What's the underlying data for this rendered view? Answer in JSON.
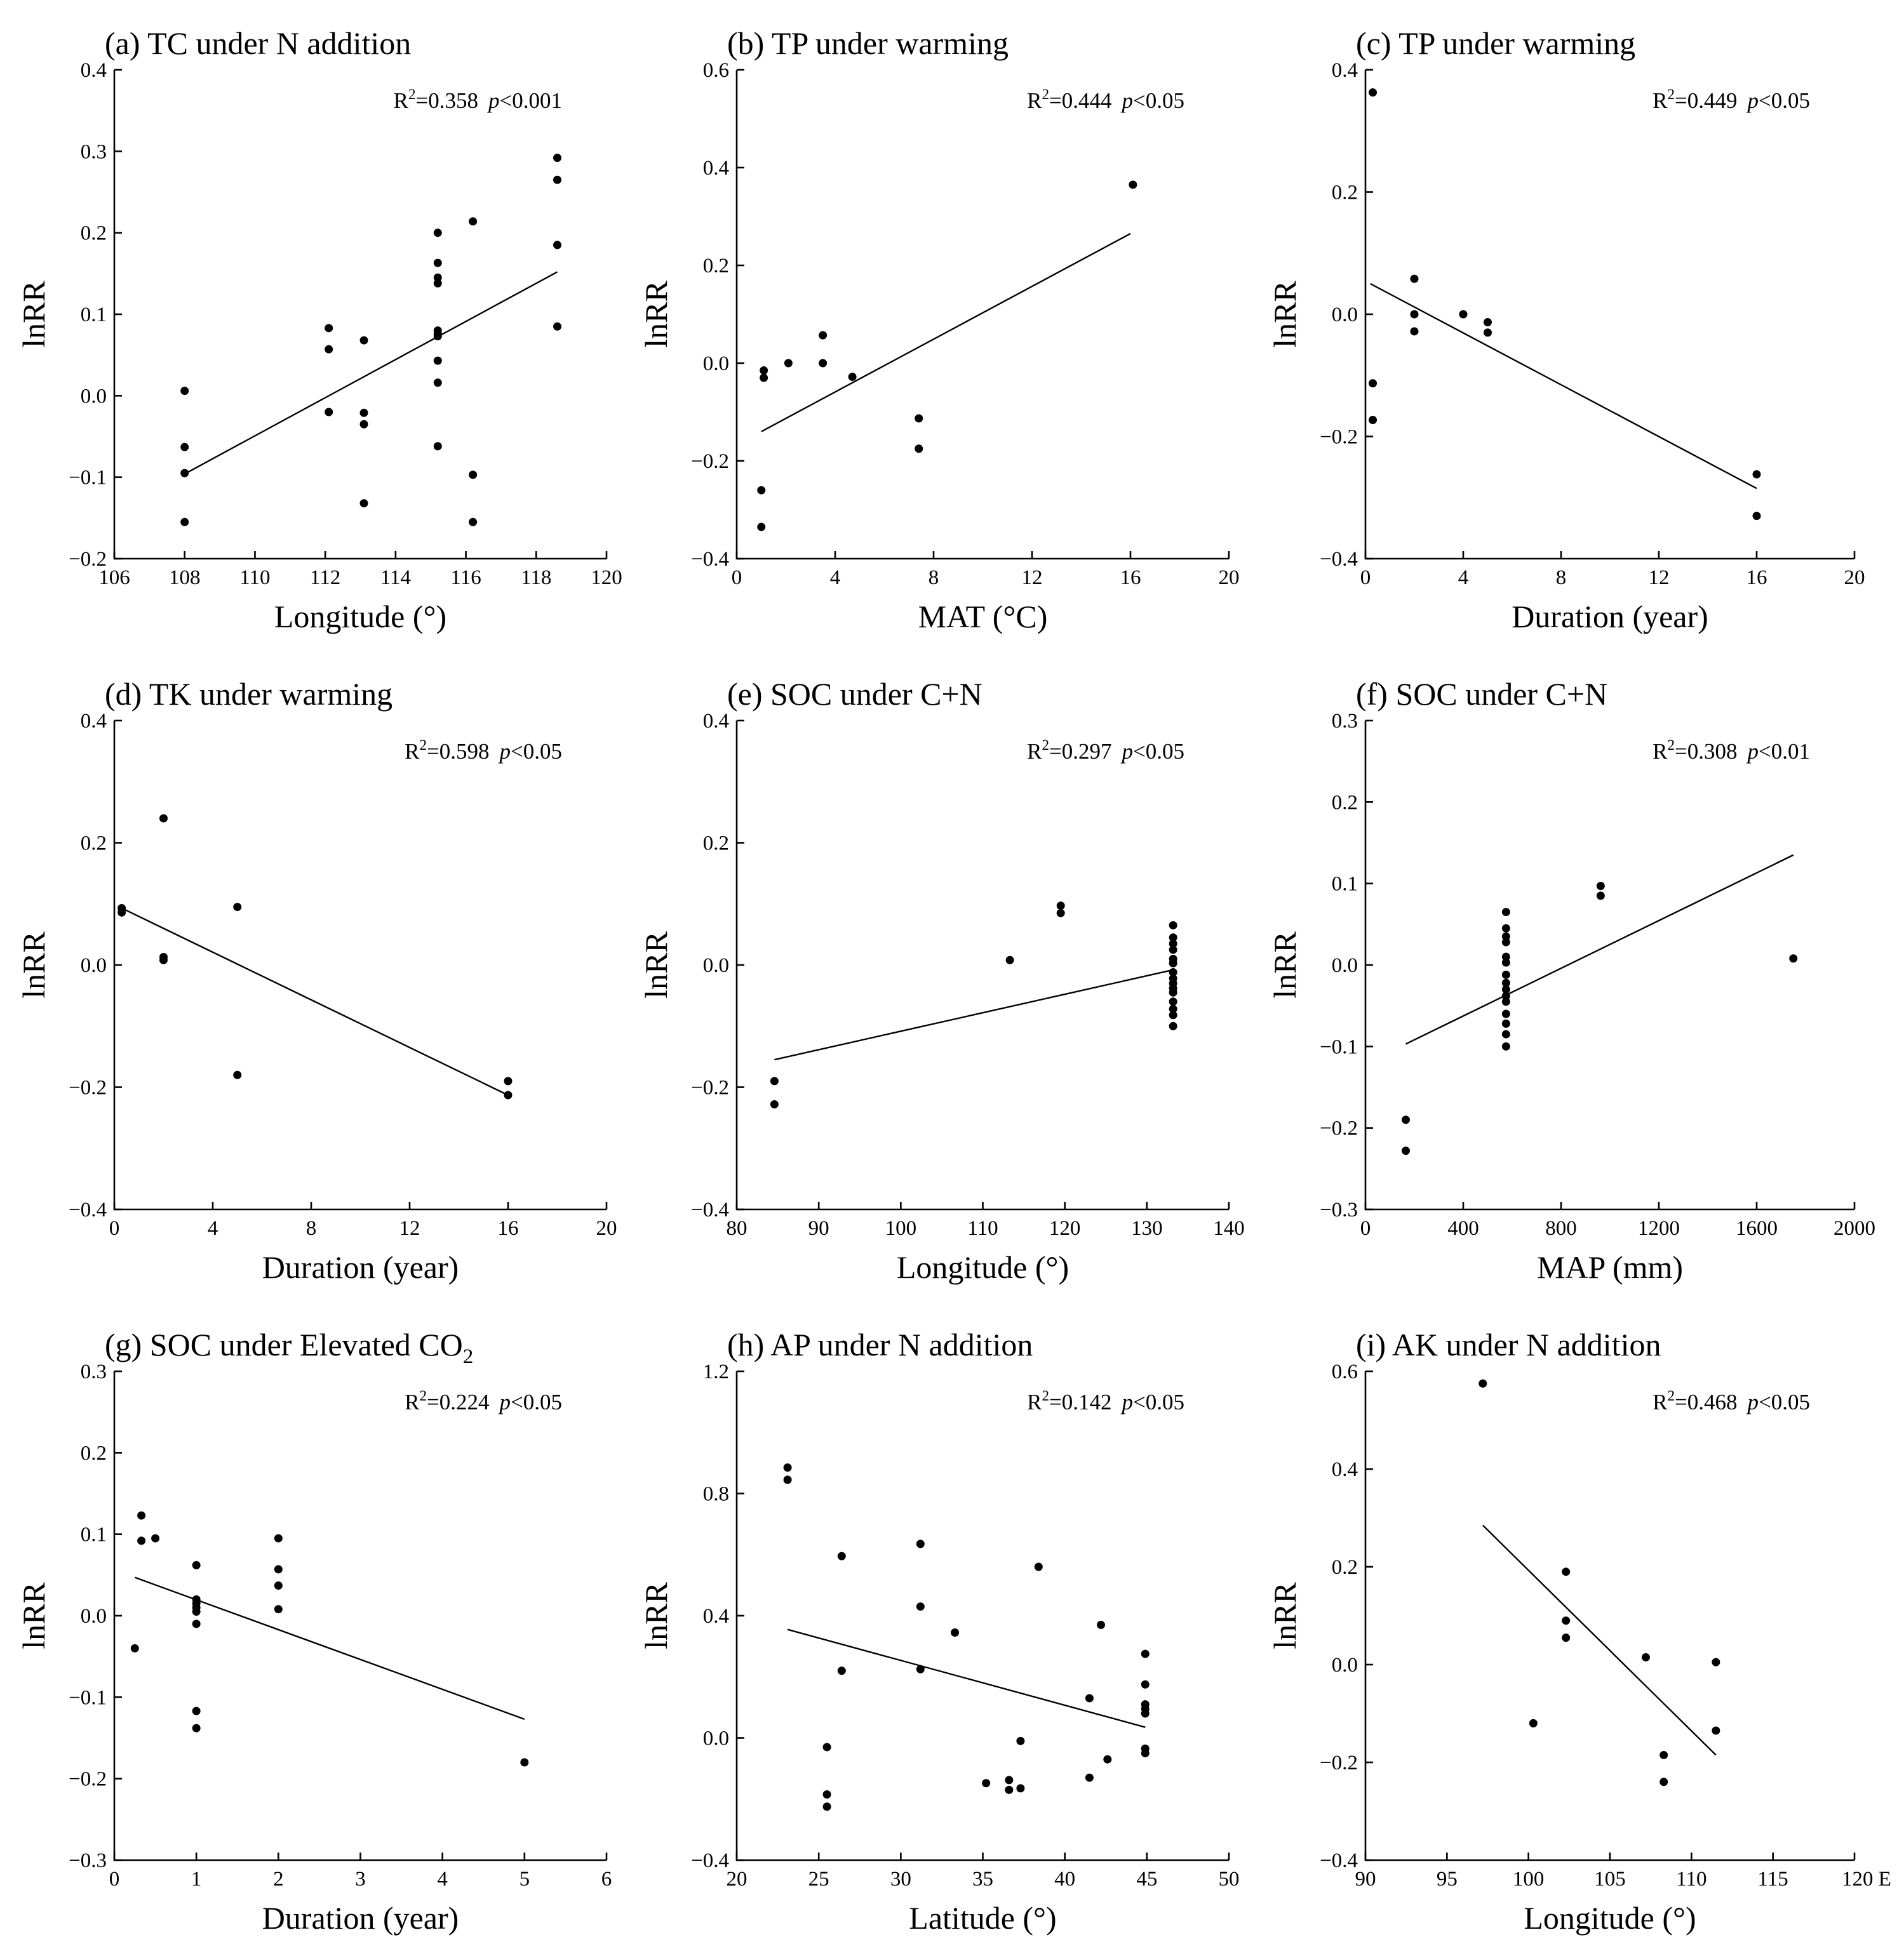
{
  "chart_data": [
    {
      "type": "scatter",
      "title": "(a) TC under N addition",
      "xlabel": "Longitude (°)",
      "ylabel": "lnRR",
      "xlim": [
        106,
        120
      ],
      "ylim": [
        -0.2,
        0.4
      ],
      "xticks": [
        106,
        108,
        110,
        112,
        114,
        116,
        118,
        120
      ],
      "yticks": [
        -0.2,
        -0.1,
        0.0,
        0.1,
        0.2,
        0.3,
        0.4
      ],
      "xdec": 0,
      "ydec": 1,
      "stat_r2": "0.358",
      "stat_p": "<0.001",
      "points": [
        [
          108,
          0.006
        ],
        [
          108,
          -0.063
        ],
        [
          108,
          -0.095
        ],
        [
          108,
          -0.155
        ],
        [
          112.1,
          0.083
        ],
        [
          112.1,
          0.057
        ],
        [
          112.1,
          -0.02
        ],
        [
          113.1,
          0.068
        ],
        [
          113.1,
          -0.021
        ],
        [
          113.1,
          -0.035
        ],
        [
          113.1,
          -0.132
        ],
        [
          115.2,
          0.2
        ],
        [
          115.2,
          0.163
        ],
        [
          115.2,
          0.145
        ],
        [
          115.2,
          0.138
        ],
        [
          115.2,
          0.08
        ],
        [
          115.2,
          0.076
        ],
        [
          115.2,
          0.073
        ],
        [
          115.2,
          0.043
        ],
        [
          115.2,
          0.016
        ],
        [
          115.2,
          -0.062
        ],
        [
          116.2,
          0.214
        ],
        [
          116.2,
          -0.097
        ],
        [
          116.2,
          -0.155
        ],
        [
          118.6,
          0.292
        ],
        [
          118.6,
          0.265
        ],
        [
          118.6,
          0.185
        ],
        [
          118.6,
          0.085
        ]
      ],
      "fit": [
        [
          108,
          -0.096
        ],
        [
          118.6,
          0.152
        ]
      ]
    },
    {
      "type": "scatter",
      "title": "(b) TP under warming",
      "xlabel": "MAT (°C)",
      "ylabel": "lnRR",
      "xlim": [
        0,
        20
      ],
      "ylim": [
        -0.4,
        0.6
      ],
      "xticks": [
        0,
        4,
        8,
        12,
        16,
        20
      ],
      "yticks": [
        -0.4,
        -0.2,
        0.0,
        0.2,
        0.4,
        0.6
      ],
      "xdec": 0,
      "ydec": 1,
      "stat_r2": "0.444",
      "stat_p": "<0.05",
      "points": [
        [
          1.1,
          -0.015
        ],
        [
          1.1,
          -0.03
        ],
        [
          1.0,
          -0.26
        ],
        [
          1.0,
          -0.335
        ],
        [
          2.1,
          0.0
        ],
        [
          3.5,
          0.057
        ],
        [
          3.5,
          0.0
        ],
        [
          4.7,
          -0.028
        ],
        [
          7.4,
          -0.113
        ],
        [
          7.4,
          -0.175
        ],
        [
          16.1,
          0.365
        ]
      ],
      "fit": [
        [
          1.0,
          -0.14
        ],
        [
          16.0,
          0.265
        ]
      ]
    },
    {
      "type": "scatter",
      "title": "(c) TP under warming",
      "xlabel": "Duration (year)",
      "ylabel": "lnRR",
      "xlim": [
        0,
        20
      ],
      "ylim": [
        -0.4,
        0.4
      ],
      "xticks": [
        0,
        4,
        8,
        12,
        16,
        20
      ],
      "yticks": [
        -0.4,
        -0.2,
        0.0,
        0.2,
        0.4
      ],
      "xdec": 0,
      "ydec": 1,
      "stat_r2": "0.449",
      "stat_p": "<0.05",
      "points": [
        [
          0.3,
          0.363
        ],
        [
          0.3,
          -0.113
        ],
        [
          0.3,
          -0.173
        ],
        [
          2,
          0.058
        ],
        [
          2,
          0.0
        ],
        [
          2,
          -0.028
        ],
        [
          4,
          0.0
        ],
        [
          5,
          -0.013
        ],
        [
          5,
          -0.03
        ],
        [
          16,
          -0.262
        ],
        [
          16,
          -0.33
        ]
      ],
      "fit": [
        [
          0.2,
          0.05
        ],
        [
          16,
          -0.285
        ]
      ]
    },
    {
      "type": "scatter",
      "title": "(d) TK under warming",
      "xlabel": "Duration (year)",
      "ylabel": "lnRR",
      "xlim": [
        0,
        20
      ],
      "ylim": [
        -0.4,
        0.4
      ],
      "xticks": [
        0,
        4,
        8,
        12,
        16,
        20
      ],
      "yticks": [
        -0.4,
        -0.2,
        0.0,
        0.2,
        0.4
      ],
      "xdec": 0,
      "ydec": 1,
      "stat_r2": "0.598",
      "stat_p": "<0.05",
      "points": [
        [
          0.3,
          0.093
        ],
        [
          0.3,
          0.086
        ],
        [
          2,
          0.24
        ],
        [
          2,
          0.013
        ],
        [
          2,
          0.008
        ],
        [
          5,
          0.095
        ],
        [
          5,
          -0.18
        ],
        [
          16,
          -0.19
        ],
        [
          16,
          -0.213
        ]
      ],
      "fit": [
        [
          0.2,
          0.095
        ],
        [
          16,
          -0.213
        ]
      ]
    },
    {
      "type": "scatter",
      "title": "(e) SOC under C+N",
      "xlabel": "Longitude (°)",
      "ylabel": "lnRR",
      "xlim": [
        80,
        140
      ],
      "ylim": [
        -0.4,
        0.4
      ],
      "xticks": [
        80,
        90,
        100,
        110,
        120,
        130,
        140
      ],
      "yticks": [
        -0.4,
        -0.2,
        0.0,
        0.2,
        0.4
      ],
      "xdec": 0,
      "ydec": 1,
      "stat_r2": "0.297",
      "stat_p": "<0.05",
      "points": [
        [
          84.6,
          -0.19
        ],
        [
          84.6,
          -0.228
        ],
        [
          113.3,
          0.008
        ],
        [
          119.5,
          0.097
        ],
        [
          119.5,
          0.085
        ],
        [
          133.2,
          0.065
        ],
        [
          133.2,
          0.045
        ],
        [
          133.2,
          0.035
        ],
        [
          133.2,
          0.025
        ],
        [
          133.2,
          0.01
        ],
        [
          133.2,
          0.003
        ],
        [
          133.2,
          -0.012
        ],
        [
          133.2,
          -0.022
        ],
        [
          133.2,
          -0.03
        ],
        [
          133.2,
          -0.038
        ],
        [
          133.2,
          -0.045
        ],
        [
          133.2,
          -0.06
        ],
        [
          133.2,
          -0.072
        ],
        [
          133.2,
          -0.082
        ],
        [
          133.2,
          -0.1
        ]
      ],
      "fit": [
        [
          84.6,
          -0.155
        ],
        [
          133.2,
          -0.008
        ]
      ]
    },
    {
      "type": "scatter",
      "title": "(f) SOC under C+N",
      "xlabel": "MAP (mm)",
      "ylabel": "lnRR",
      "xlim": [
        0,
        2000
      ],
      "ylim": [
        -0.3,
        0.3
      ],
      "xticks": [
        0,
        400,
        800,
        1200,
        1600,
        2000
      ],
      "yticks": [
        -0.3,
        -0.2,
        -0.1,
        0.0,
        0.1,
        0.2,
        0.3
      ],
      "xdec": 0,
      "ydec": 1,
      "stat_r2": "0.308",
      "stat_p": "<0.01",
      "points": [
        [
          165,
          -0.19
        ],
        [
          165,
          -0.228
        ],
        [
          575,
          0.065
        ],
        [
          575,
          0.045
        ],
        [
          575,
          0.035
        ],
        [
          575,
          0.028
        ],
        [
          575,
          0.01
        ],
        [
          575,
          0.003
        ],
        [
          575,
          -0.012
        ],
        [
          575,
          -0.022
        ],
        [
          575,
          -0.03
        ],
        [
          575,
          -0.038
        ],
        [
          575,
          -0.045
        ],
        [
          575,
          -0.06
        ],
        [
          575,
          -0.072
        ],
        [
          575,
          -0.085
        ],
        [
          575,
          -0.1
        ],
        [
          962,
          0.097
        ],
        [
          962,
          0.085
        ],
        [
          1750,
          0.008
        ]
      ],
      "fit": [
        [
          165,
          -0.097
        ],
        [
          1750,
          0.135
        ]
      ]
    },
    {
      "type": "scatter",
      "title": "(g) SOC under Elevated CO",
      "title_sub": "2",
      "xlabel": "Duration (year)",
      "ylabel": "lnRR",
      "xlim": [
        0,
        6
      ],
      "ylim": [
        -0.3,
        0.3
      ],
      "xticks": [
        0,
        1,
        2,
        3,
        4,
        5,
        6
      ],
      "yticks": [
        -0.3,
        -0.2,
        -0.1,
        0.0,
        0.1,
        0.2,
        0.3
      ],
      "xdec": 0,
      "ydec": 1,
      "stat_r2": "0.224",
      "stat_p": "<0.05",
      "points": [
        [
          0.25,
          -0.04
        ],
        [
          0.33,
          0.123
        ],
        [
          0.33,
          0.092
        ],
        [
          0.5,
          0.095
        ],
        [
          1,
          0.062
        ],
        [
          1,
          0.02
        ],
        [
          1,
          0.015
        ],
        [
          1,
          0.01
        ],
        [
          1,
          0.005
        ],
        [
          1,
          -0.01
        ],
        [
          1,
          -0.117
        ],
        [
          1,
          -0.138
        ],
        [
          2,
          0.095
        ],
        [
          2,
          0.057
        ],
        [
          2,
          0.037
        ],
        [
          2,
          0.008
        ],
        [
          5,
          -0.18
        ]
      ],
      "fit": [
        [
          0.25,
          0.047
        ],
        [
          5,
          -0.127
        ]
      ]
    },
    {
      "type": "scatter",
      "title": "(h) AP under N addition",
      "xlabel": "Latitude (°)",
      "ylabel": "lnRR",
      "xlim": [
        20,
        50
      ],
      "ylim": [
        -0.4,
        1.2
      ],
      "xticks": [
        20,
        25,
        30,
        35,
        40,
        45,
        50
      ],
      "yticks": [
        -0.4,
        0.0,
        0.4,
        0.8,
        1.2
      ],
      "xdec": 0,
      "ydec": 1,
      "stat_r2": "0.142",
      "stat_p": "<0.05",
      "points": [
        [
          23.1,
          0.885
        ],
        [
          23.1,
          0.845
        ],
        [
          25.5,
          -0.03
        ],
        [
          25.5,
          -0.185
        ],
        [
          25.5,
          -0.225
        ],
        [
          26.4,
          0.595
        ],
        [
          26.4,
          0.22
        ],
        [
          31.2,
          0.635
        ],
        [
          31.2,
          0.43
        ],
        [
          31.2,
          0.225
        ],
        [
          33.3,
          0.345
        ],
        [
          35.2,
          -0.148
        ],
        [
          36.6,
          -0.138
        ],
        [
          36.6,
          -0.17
        ],
        [
          37.3,
          -0.01
        ],
        [
          37.3,
          -0.165
        ],
        [
          38.4,
          0.56
        ],
        [
          41.5,
          0.13
        ],
        [
          41.5,
          -0.13
        ],
        [
          42.2,
          0.37
        ],
        [
          42.6,
          -0.07
        ],
        [
          44.9,
          0.275
        ],
        [
          44.9,
          0.175
        ],
        [
          44.9,
          0.11
        ],
        [
          44.9,
          0.095
        ],
        [
          44.9,
          0.08
        ],
        [
          44.9,
          -0.035
        ],
        [
          44.9,
          -0.05
        ]
      ],
      "fit": [
        [
          23.1,
          0.355
        ],
        [
          44.9,
          0.035
        ]
      ]
    },
    {
      "type": "scatter",
      "title": "(i) AK under N addition",
      "xlabel": "Longitude (°)",
      "ylabel": "lnRR",
      "xlim": [
        90,
        120
      ],
      "ylim": [
        -0.4,
        0.6
      ],
      "xticks": [
        90,
        95,
        100,
        105,
        110,
        115,
        120
      ],
      "yticks": [
        -0.4,
        -0.2,
        0.0,
        0.2,
        0.4,
        0.6
      ],
      "xdec": 0,
      "ydec": 1,
      "last_xtick_suffix": " E",
      "stat_r2": "0.468",
      "stat_p": "<0.05",
      "points": [
        [
          97.2,
          0.575
        ],
        [
          100.3,
          -0.12
        ],
        [
          102.3,
          0.19
        ],
        [
          102.3,
          0.09
        ],
        [
          102.3,
          0.055
        ],
        [
          107.2,
          0.015
        ],
        [
          108.3,
          -0.185
        ],
        [
          108.3,
          -0.24
        ],
        [
          111.5,
          0.005
        ],
        [
          111.5,
          -0.135
        ]
      ],
      "fit": [
        [
          97.2,
          0.285
        ],
        [
          111.5,
          -0.185
        ]
      ]
    }
  ]
}
